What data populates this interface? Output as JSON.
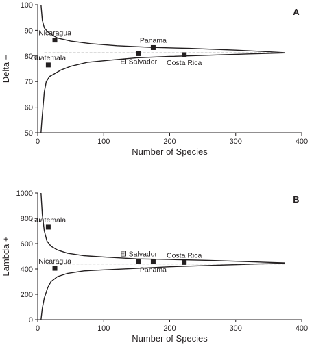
{
  "chart_data": [
    {
      "type": "scatter",
      "panel": "A",
      "xlabel": "Number of Species",
      "ylabel": "Delta +",
      "xlim": [
        0,
        400
      ],
      "ylim": [
        50,
        100
      ],
      "xticks": [
        0,
        100,
        200,
        300,
        400
      ],
      "yticks": [
        50,
        60,
        70,
        80,
        90,
        100
      ],
      "mean_line": 81.2,
      "points": [
        {
          "label": "Nicaragua",
          "x": 26,
          "y": 86.2,
          "label_pos": "above"
        },
        {
          "label": "Guatemala",
          "x": 16,
          "y": 76.5,
          "label_pos": "above"
        },
        {
          "label": "Panama",
          "x": 175,
          "y": 83.3,
          "label_pos": "above"
        },
        {
          "label": "El Salvador",
          "x": 153,
          "y": 80.9,
          "label_pos": "below"
        },
        {
          "label": "Costa Rica",
          "x": 222,
          "y": 80.5,
          "label_pos": "below"
        }
      ],
      "upper_funnel": [
        [
          5,
          100
        ],
        [
          7,
          94
        ],
        [
          10,
          91
        ],
        [
          15,
          89.5
        ],
        [
          20,
          88.5
        ],
        [
          30,
          87
        ],
        [
          50,
          85.8
        ],
        [
          80,
          84.8
        ],
        [
          120,
          84
        ],
        [
          170,
          83.4
        ],
        [
          230,
          83
        ],
        [
          300,
          82.3
        ],
        [
          340,
          81.8
        ],
        [
          375,
          81.3
        ]
      ],
      "lower_funnel": [
        [
          5,
          50
        ],
        [
          6,
          54
        ],
        [
          8,
          60
        ],
        [
          10,
          66
        ],
        [
          13,
          70
        ],
        [
          18,
          72
        ],
        [
          25,
          73
        ],
        [
          35,
          74.5
        ],
        [
          50,
          76
        ],
        [
          75,
          77.5
        ],
        [
          110,
          78.4
        ],
        [
          150,
          79.3
        ],
        [
          200,
          79.8
        ],
        [
          260,
          80.3
        ],
        [
          320,
          80.8
        ],
        [
          375,
          81.2
        ]
      ],
      "grid": false,
      "legend": "none"
    },
    {
      "type": "scatter",
      "panel": "B",
      "xlabel": "Number of Species",
      "ylabel": "Lambda +",
      "xlim": [
        0,
        400
      ],
      "ylim": [
        0,
        1000
      ],
      "xticks": [
        0,
        100,
        200,
        300,
        400
      ],
      "yticks": [
        0,
        200,
        400,
        600,
        800,
        1000
      ],
      "mean_line": 440,
      "points": [
        {
          "label": "Guatemala",
          "x": 16,
          "y": 730,
          "label_pos": "above"
        },
        {
          "label": "Nicaragua",
          "x": 26,
          "y": 405,
          "label_pos": "above"
        },
        {
          "label": "El Salvador",
          "x": 153,
          "y": 462,
          "label_pos": "above"
        },
        {
          "label": "Panama",
          "x": 175,
          "y": 457,
          "label_pos": "below"
        },
        {
          "label": "Costa Rica",
          "x": 222,
          "y": 452,
          "label_pos": "above"
        }
      ],
      "upper_funnel": [
        [
          5,
          1000
        ],
        [
          7,
          830
        ],
        [
          10,
          700
        ],
        [
          14,
          620
        ],
        [
          20,
          580
        ],
        [
          30,
          550
        ],
        [
          45,
          525
        ],
        [
          70,
          505
        ],
        [
          100,
          495
        ],
        [
          150,
          480
        ],
        [
          200,
          475
        ],
        [
          260,
          468
        ],
        [
          320,
          458
        ],
        [
          375,
          448
        ]
      ],
      "lower_funnel": [
        [
          5,
          0
        ],
        [
          7,
          90
        ],
        [
          10,
          170
        ],
        [
          15,
          250
        ],
        [
          20,
          300
        ],
        [
          30,
          340
        ],
        [
          45,
          365
        ],
        [
          70,
          385
        ],
        [
          100,
          393
        ],
        [
          150,
          405
        ],
        [
          200,
          418
        ],
        [
          260,
          428
        ],
        [
          320,
          438
        ],
        [
          375,
          446
        ]
      ],
      "grid": false,
      "legend": "none"
    }
  ]
}
